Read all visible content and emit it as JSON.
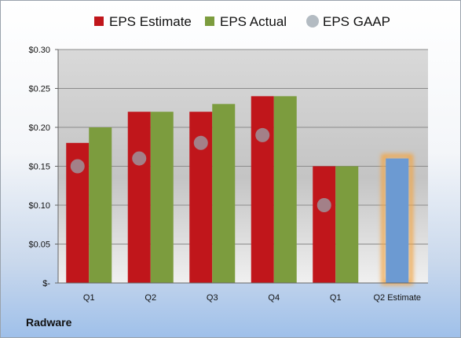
{
  "company_label": "Radware",
  "chart_data": {
    "type": "bar",
    "title": "",
    "xlabel": "",
    "ylabel": "",
    "categories": [
      "Q1",
      "Q2",
      "Q3",
      "Q4",
      "Q1",
      "Q2 Estimate"
    ],
    "ylim": [
      0,
      0.3
    ],
    "yticks": [
      0,
      0.05,
      0.1,
      0.15,
      0.2,
      0.25,
      0.3
    ],
    "ytick_labels": [
      "$-",
      "$0.05",
      "$0.10",
      "$0.15",
      "$0.20",
      "$0.25",
      "$0.30"
    ],
    "grid": true,
    "legend_position": "top",
    "series": [
      {
        "name": "EPS Estimate",
        "kind": "bar",
        "color": "#c0161b",
        "values": [
          0.18,
          0.22,
          0.22,
          0.24,
          0.15,
          null
        ]
      },
      {
        "name": "EPS Actual",
        "kind": "bar",
        "color": "#7c9c3e",
        "values": [
          0.2,
          0.22,
          0.23,
          0.24,
          0.15,
          null
        ]
      },
      {
        "name": "EPS GAAP",
        "kind": "marker",
        "color": "#9aa4ae",
        "values": [
          0.15,
          0.16,
          0.18,
          0.19,
          0.1,
          null
        ]
      },
      {
        "name": "Q2 Estimate",
        "kind": "bar",
        "color": "#6c9ad2",
        "highlight": "#f2a544",
        "values": [
          null,
          null,
          null,
          null,
          null,
          0.16
        ]
      }
    ]
  }
}
